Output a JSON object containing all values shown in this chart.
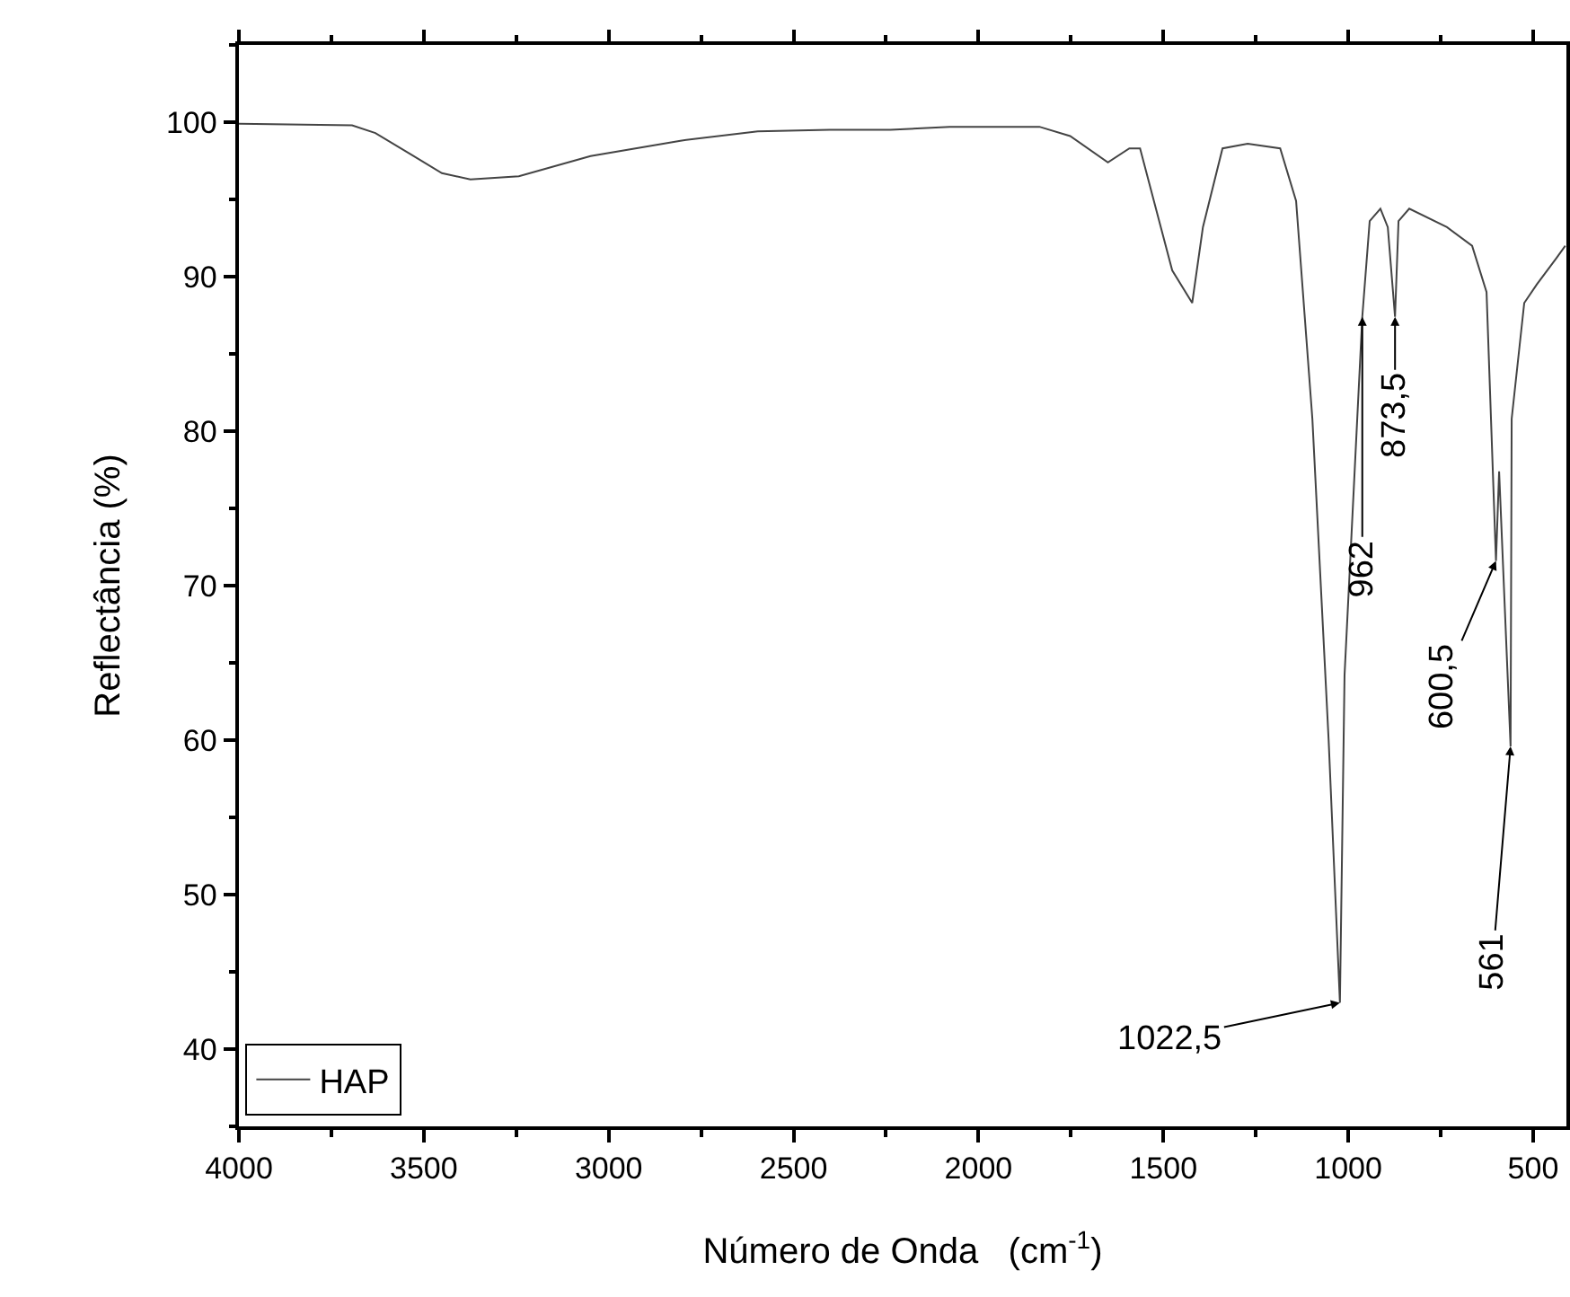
{
  "chart_data": {
    "type": "line",
    "xlabel": "Número de Onda   (cm$^{-1}$)",
    "ylabel": "Reflectância (%)",
    "x": [
      4000,
      3694,
      3631,
      3534,
      3451,
      3374,
      3243,
      3049,
      2806,
      2597,
      2403,
      2238,
      2078,
      1835,
      1752,
      1650,
      1592,
      1563,
      1476,
      1422,
      1393,
      1340,
      1272,
      1184,
      1141,
      1097,
      1053,
      1022.5,
      1010,
      962,
      942,
      913,
      893,
      873.5,
      864,
      835,
      733,
      665,
      626,
      600.5,
      592,
      561,
      558,
      524,
      490,
      437,
      413
    ],
    "series": [
      {
        "name": "HAP",
        "color": "#444444",
        "values": [
          99.9,
          99.8,
          99.3,
          97.9,
          96.7,
          96.3,
          96.5,
          97.8,
          98.8,
          99.4,
          99.5,
          99.5,
          99.7,
          99.7,
          99.1,
          97.4,
          98.3,
          98.3,
          90.4,
          88.3,
          93.2,
          98.3,
          98.6,
          98.3,
          94.9,
          80.8,
          60,
          43,
          64.2,
          87.4,
          93.6,
          94.4,
          93.2,
          87.4,
          93.6,
          94.4,
          93.2,
          92,
          89,
          71.6,
          77.4,
          59.6,
          80.8,
          88.3,
          89.5,
          91.2,
          92
        ]
      }
    ],
    "xlim": [
      4000,
      410
    ],
    "ylim": [
      35,
      105
    ],
    "xticks": [
      4000,
      3500,
      3000,
      2500,
      2000,
      1500,
      1000,
      500
    ],
    "yticks": [
      40,
      50,
      60,
      70,
      80,
      90,
      100
    ],
    "annotations": [
      {
        "text": "1022,5",
        "x": 1022.5,
        "y": 43
      },
      {
        "text": "962",
        "x": 962,
        "y": 87.4
      },
      {
        "text": "873,5",
        "x": 873.5,
        "y": 87.4
      },
      {
        "text": "600,5",
        "x": 600.5,
        "y": 71.6
      },
      {
        "text": "561",
        "x": 561,
        "y": 59.6
      }
    ],
    "legend": "bottom left",
    "marker": "none",
    "line_style": "solid"
  }
}
